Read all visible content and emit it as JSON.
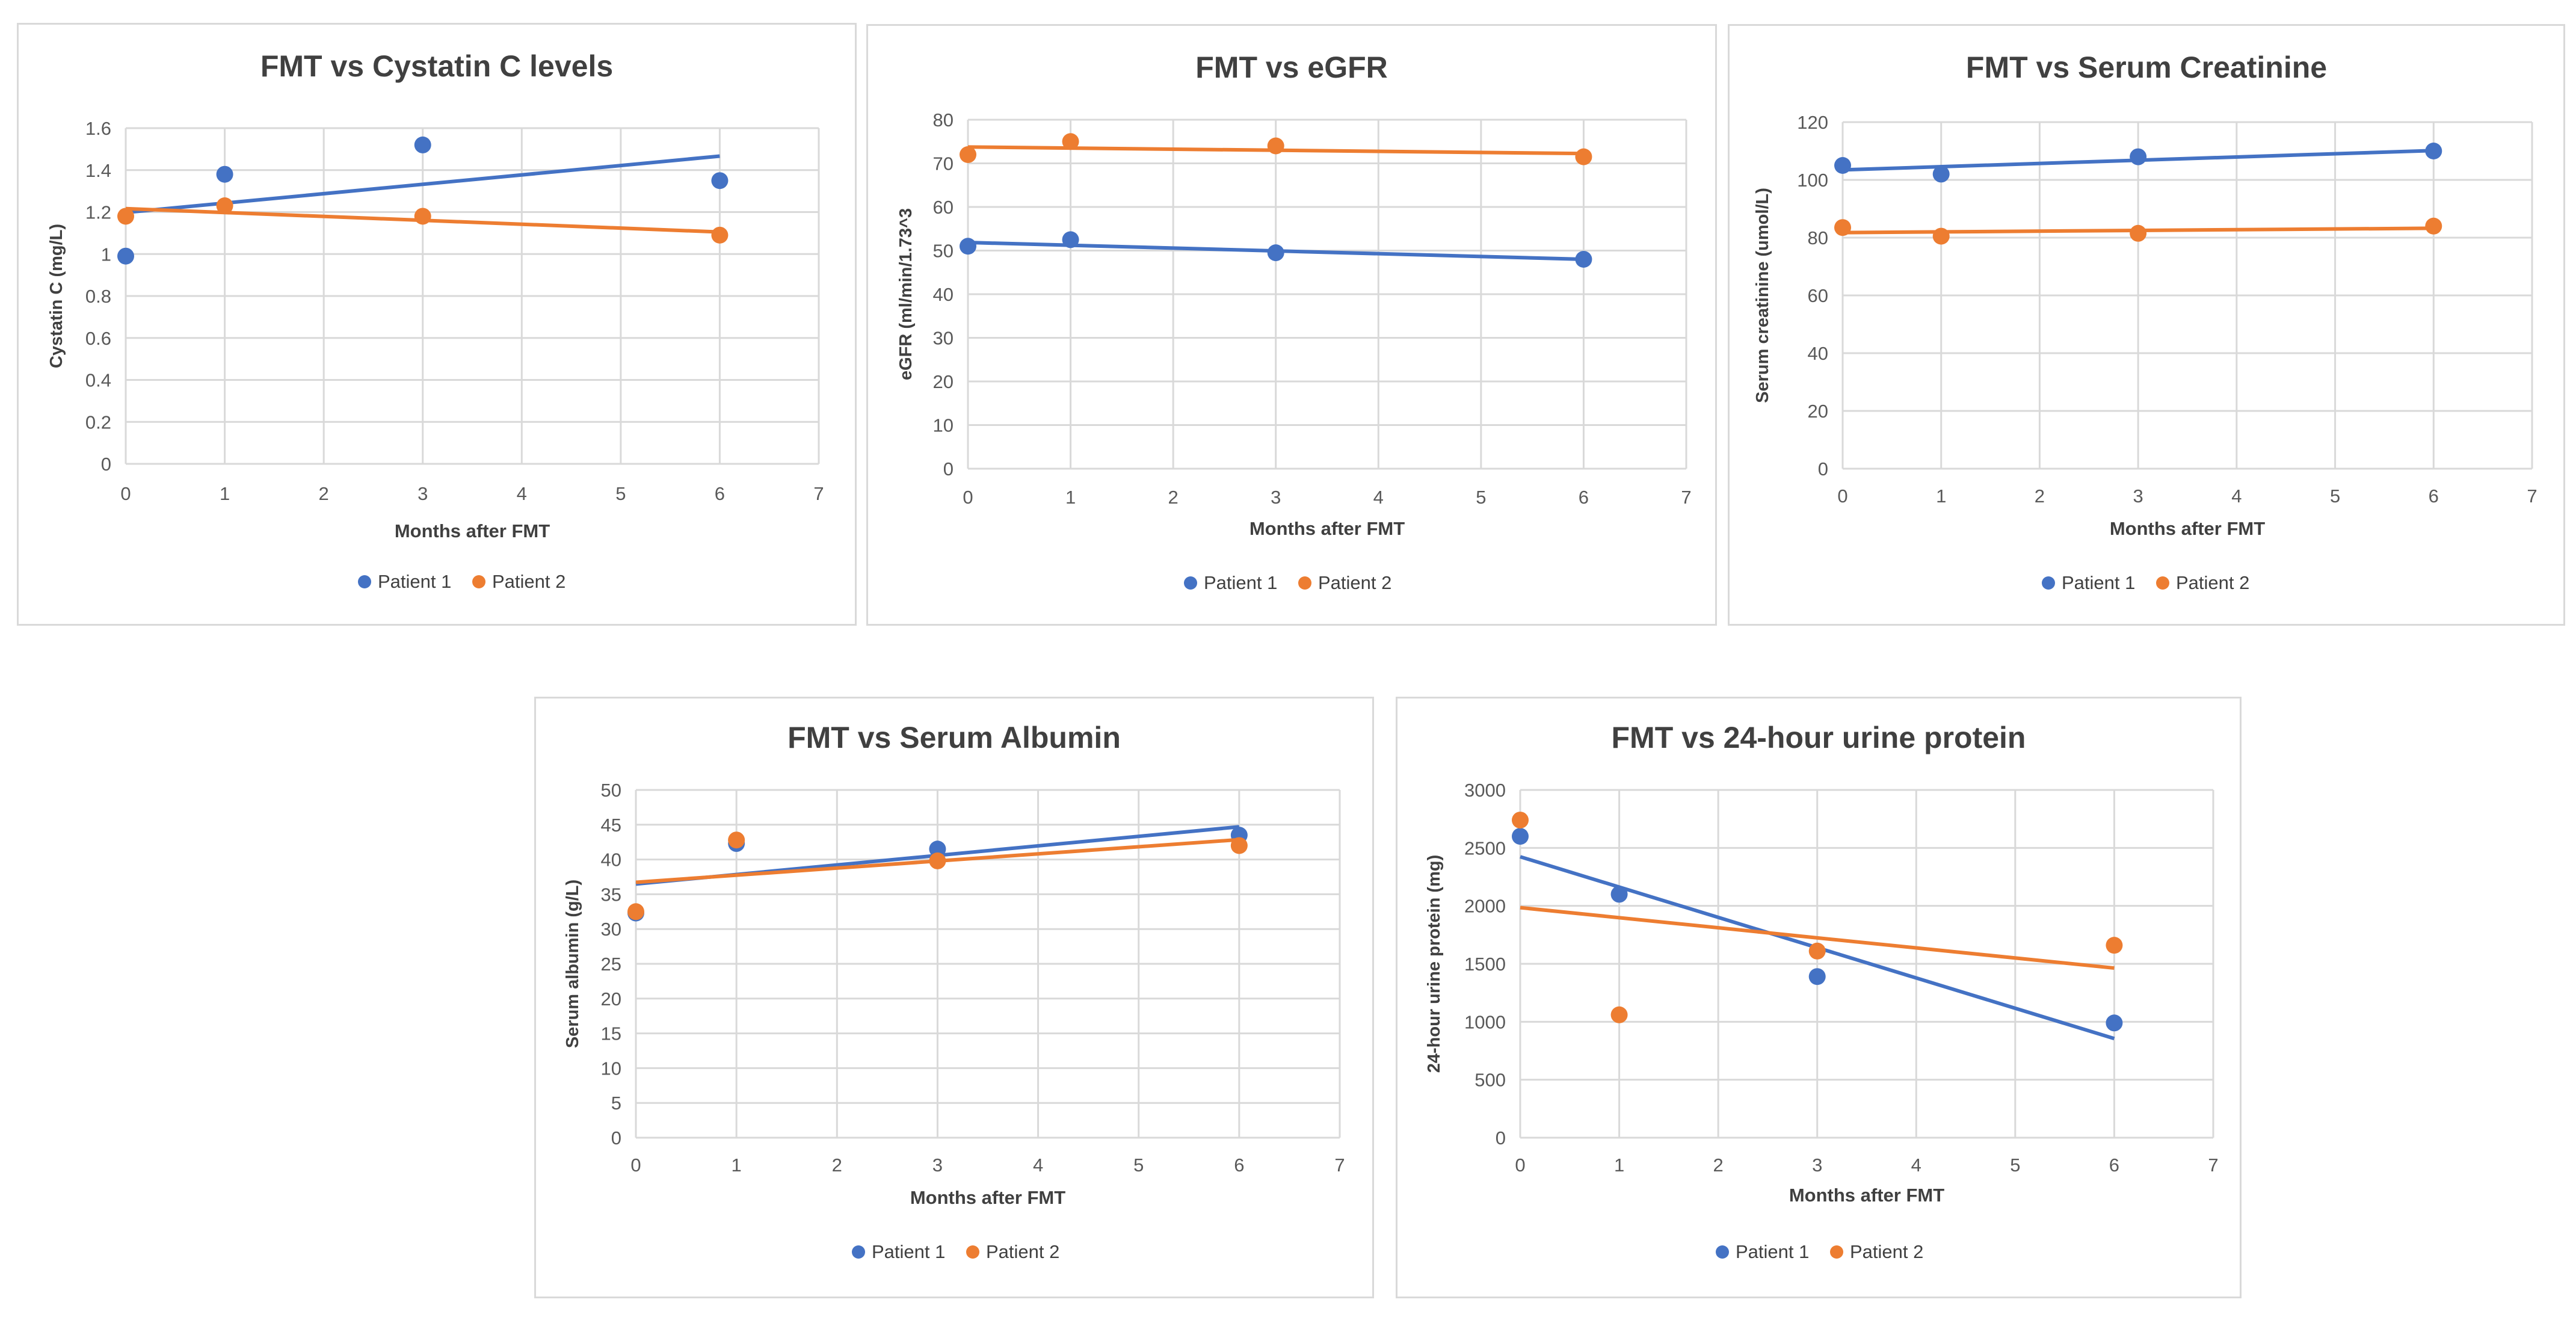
{
  "colors": {
    "patient1": "#4472C4",
    "patient2": "#ED7D31",
    "grid": "#d9d9d9"
  },
  "chart_data": [
    {
      "type": "scatter",
      "title": "FMT vs Cystatin C levels",
      "xlabel": "Months after FMT",
      "ylabel": "Cystatin C (mg/L)",
      "xlim": [
        0,
        7
      ],
      "ylim": [
        0,
        1.6
      ],
      "xticks": [
        "0",
        "1",
        "2",
        "3",
        "4",
        "5",
        "6",
        "7"
      ],
      "yticks": [
        "0",
        "0.2",
        "0.4",
        "0.6",
        "0.8",
        "1",
        "1.2",
        "1.4",
        "1.6"
      ],
      "trendline": "linear",
      "legend": "bottom",
      "series": [
        {
          "name": "Patient 1",
          "x": [
            0,
            1,
            3,
            6
          ],
          "y": [
            0.99,
            1.38,
            1.52,
            1.35
          ]
        },
        {
          "name": "Patient 2",
          "x": [
            0,
            1,
            3,
            6
          ],
          "y": [
            1.18,
            1.23,
            1.18,
            1.09
          ]
        }
      ]
    },
    {
      "type": "scatter",
      "title": "FMT vs eGFR",
      "xlabel": "Months after FMT",
      "ylabel": "eGFR (ml/min/1.73^3",
      "xlim": [
        0,
        7
      ],
      "ylim": [
        0,
        80
      ],
      "xticks": [
        "0",
        "1",
        "2",
        "3",
        "4",
        "5",
        "6",
        "7"
      ],
      "yticks": [
        "0",
        "10",
        "20",
        "30",
        "40",
        "50",
        "60",
        "70",
        "80"
      ],
      "trendline": "linear",
      "legend": "bottom",
      "series": [
        {
          "name": "Patient 1",
          "x": [
            0,
            1,
            3,
            6
          ],
          "y": [
            51,
            52.5,
            49.5,
            48
          ]
        },
        {
          "name": "Patient 2",
          "x": [
            0,
            1,
            3,
            6
          ],
          "y": [
            72,
            75,
            74,
            71.5
          ]
        }
      ]
    },
    {
      "type": "scatter",
      "title": "FMT vs Serum Creatinine",
      "xlabel": "Months after FMT",
      "ylabel": "Serum creatinine (umol/L)",
      "xlim": [
        0,
        7
      ],
      "ylim": [
        0,
        120
      ],
      "xticks": [
        "0",
        "1",
        "2",
        "3",
        "4",
        "5",
        "6",
        "7"
      ],
      "yticks": [
        "0",
        "20",
        "40",
        "60",
        "80",
        "100",
        "120"
      ],
      "trendline": "linear",
      "legend": "bottom",
      "series": [
        {
          "name": "Patient 1",
          "x": [
            0,
            1,
            3,
            6
          ],
          "y": [
            105,
            102,
            108,
            110
          ]
        },
        {
          "name": "Patient 2",
          "x": [
            0,
            1,
            3,
            6
          ],
          "y": [
            83.5,
            80.5,
            81.5,
            84
          ]
        }
      ]
    },
    {
      "type": "scatter",
      "title": "FMT vs Serum Albumin",
      "xlabel": "Months after FMT",
      "ylabel": "Serum albumin (g/L)",
      "xlim": [
        0,
        7
      ],
      "ylim": [
        0,
        50
      ],
      "xticks": [
        "0",
        "1",
        "2",
        "3",
        "4",
        "5",
        "6",
        "7"
      ],
      "yticks": [
        "0",
        "5",
        "10",
        "15",
        "20",
        "25",
        "30",
        "35",
        "40",
        "45",
        "50"
      ],
      "trendline": "linear",
      "legend": "bottom",
      "series": [
        {
          "name": "Patient 1",
          "x": [
            0,
            1,
            3,
            6
          ],
          "y": [
            32.3,
            42.3,
            41.5,
            43.5
          ]
        },
        {
          "name": "Patient 2",
          "x": [
            0,
            1,
            3,
            6
          ],
          "y": [
            32.5,
            42.8,
            39.8,
            42
          ]
        }
      ]
    },
    {
      "type": "scatter",
      "title": "FMT vs 24-hour urine protein",
      "xlabel": "Months after FMT",
      "ylabel": "24-hour urine protein (mg)",
      "xlim": [
        0,
        7
      ],
      "ylim": [
        0,
        3000
      ],
      "xticks": [
        "0",
        "1",
        "2",
        "3",
        "4",
        "5",
        "6",
        "7"
      ],
      "yticks": [
        "0",
        "500",
        "1000",
        "1500",
        "2000",
        "2500",
        "3000"
      ],
      "trendline": "linear",
      "legend": "bottom",
      "series": [
        {
          "name": "Patient 1",
          "x": [
            0,
            1,
            3,
            6
          ],
          "y": [
            2600,
            2100,
            1390,
            990
          ]
        },
        {
          "name": "Patient 2",
          "x": [
            0,
            1,
            3,
            6
          ],
          "y": [
            2740,
            1060,
            1610,
            1660
          ]
        }
      ]
    }
  ]
}
